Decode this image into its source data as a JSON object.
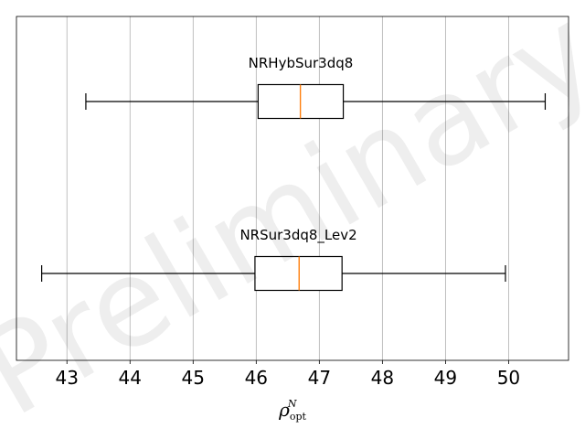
{
  "chart_data": {
    "type": "boxplot",
    "orientation": "horizontal",
    "grid": "vertical",
    "xlim": [
      42.2,
      50.95
    ],
    "x_ticks": [
      "43",
      "44",
      "45",
      "46",
      "47",
      "48",
      "49",
      "50"
    ],
    "xlabel": {
      "symbol": "ρ",
      "superscript": "N",
      "subscript": "opt"
    },
    "series": [
      {
        "name": "NRHybSur3dq8",
        "whisker_low": 43.3,
        "q1": 46.03,
        "median": 46.7,
        "q3": 47.38,
        "whisker_high": 50.58
      },
      {
        "name": "NRSur3dq8_Lev2",
        "whisker_low": 42.6,
        "q1": 45.98,
        "median": 46.68,
        "q3": 47.36,
        "whisker_high": 49.95
      }
    ],
    "watermark": "Preliminary",
    "colors": {
      "box": "#000000",
      "median": "#ff7f0e",
      "grid": "#b0b0b0"
    }
  }
}
